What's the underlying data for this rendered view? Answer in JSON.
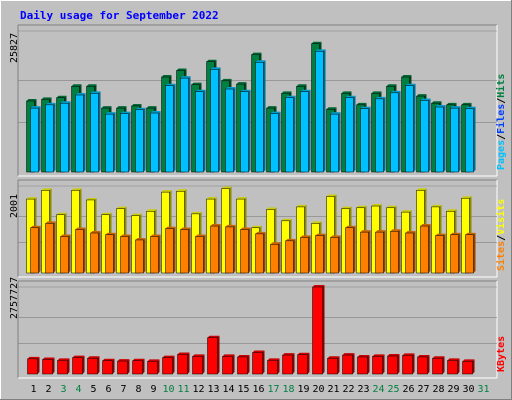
{
  "chart_data": {
    "type": "bar",
    "title": "Daily usage for September 2022",
    "categories": [
      "1",
      "2",
      "3",
      "4",
      "5",
      "6",
      "7",
      "8",
      "9",
      "10",
      "11",
      "12",
      "13",
      "14",
      "15",
      "16",
      "17",
      "18",
      "19",
      "20",
      "21",
      "22",
      "23",
      "24",
      "25",
      "26",
      "27",
      "28",
      "29",
      "30",
      "31"
    ],
    "weekend_days": [
      "3",
      "4",
      "10",
      "11",
      "17",
      "18",
      "24",
      "25",
      "31"
    ],
    "panels": [
      {
        "id": "hits_files_pages",
        "ymax_label": "25827",
        "ymax": 25827,
        "right_labels": [
          "Pages",
          "/",
          "Files",
          "/",
          "Hits"
        ],
        "series": [
          {
            "name": "Hits",
            "color": "#008040",
            "values": [
              13000,
              13300,
              13600,
              15700,
              15700,
              11700,
              11700,
              12100,
              11700,
              17400,
              18600,
              16000,
              20200,
              16700,
              16100,
              21500,
              11700,
              14400,
              15700,
              23500,
              11500,
              14400,
              12300,
              14400,
              15700,
              17400,
              13900,
              12600,
              12300,
              12300,
              null
            ]
          },
          {
            "name": "Files",
            "color": "#00c0ff",
            "values": [
              11700,
              12300,
              12600,
              14100,
              14400,
              10600,
              10700,
              11400,
              10800,
              15800,
              17200,
              14700,
              18800,
              15200,
              14700,
              20100,
              10700,
              13600,
              14700,
              22100,
              10600,
              13600,
              11600,
              13400,
              14500,
              15800,
              13100,
              11900,
              11700,
              11600,
              null
            ]
          },
          {
            "name": "Pages",
            "color": "#00c0ff",
            "values": [
              null,
              null,
              null,
              null,
              null,
              null,
              null,
              null,
              null,
              null,
              null,
              null,
              null,
              null,
              null,
              null,
              null,
              null,
              null,
              null,
              null,
              null,
              null,
              null,
              null,
              null,
              null,
              null,
              null,
              null,
              null
            ]
          }
        ]
      },
      {
        "id": "visits_sites",
        "ymax_label": "2001",
        "ymax": 2001,
        "right_labels": [
          "Sites",
          "/",
          "Visits"
        ],
        "series": [
          {
            "name": "Visits",
            "color": "#ffff00",
            "values": [
              1700,
              1900,
              1340,
              1900,
              1680,
              1340,
              1480,
              1320,
              1420,
              1860,
              1880,
              1360,
              1700,
              1940,
              1700,
              1040,
              1460,
              1200,
              1520,
              1140,
              1760,
              1480,
              1500,
              1540,
              1500,
              1400,
              1900,
              1520,
              1420,
              1720,
              null
            ]
          },
          {
            "name": "Sites",
            "color": "#ff8000",
            "values": [
              1040,
              1140,
              840,
              1000,
              920,
              880,
              840,
              760,
              840,
              1020,
              1000,
              840,
              1080,
              1060,
              1000,
              900,
              660,
              740,
              820,
              860,
              820,
              1040,
              940,
              940,
              960,
              920,
              1080,
              860,
              880,
              880,
              null
            ]
          }
        ]
      },
      {
        "id": "kbytes",
        "ymax_label": "2757727",
        "ymax": 2757727,
        "right_labels": [
          "KBytes"
        ],
        "series": [
          {
            "name": "KBytes",
            "color": "#ff0000",
            "values": [
              480000,
              460000,
              430000,
              520000,
              500000,
              420000,
              410000,
              420000,
              400000,
              520000,
              620000,
              560000,
              1150000,
              560000,
              540000,
              680000,
              430000,
              600000,
              610000,
              2757727,
              500000,
              600000,
              540000,
              560000,
              570000,
              590000,
              540000,
              500000,
              430000,
              400000,
              null
            ]
          }
        ]
      }
    ]
  }
}
